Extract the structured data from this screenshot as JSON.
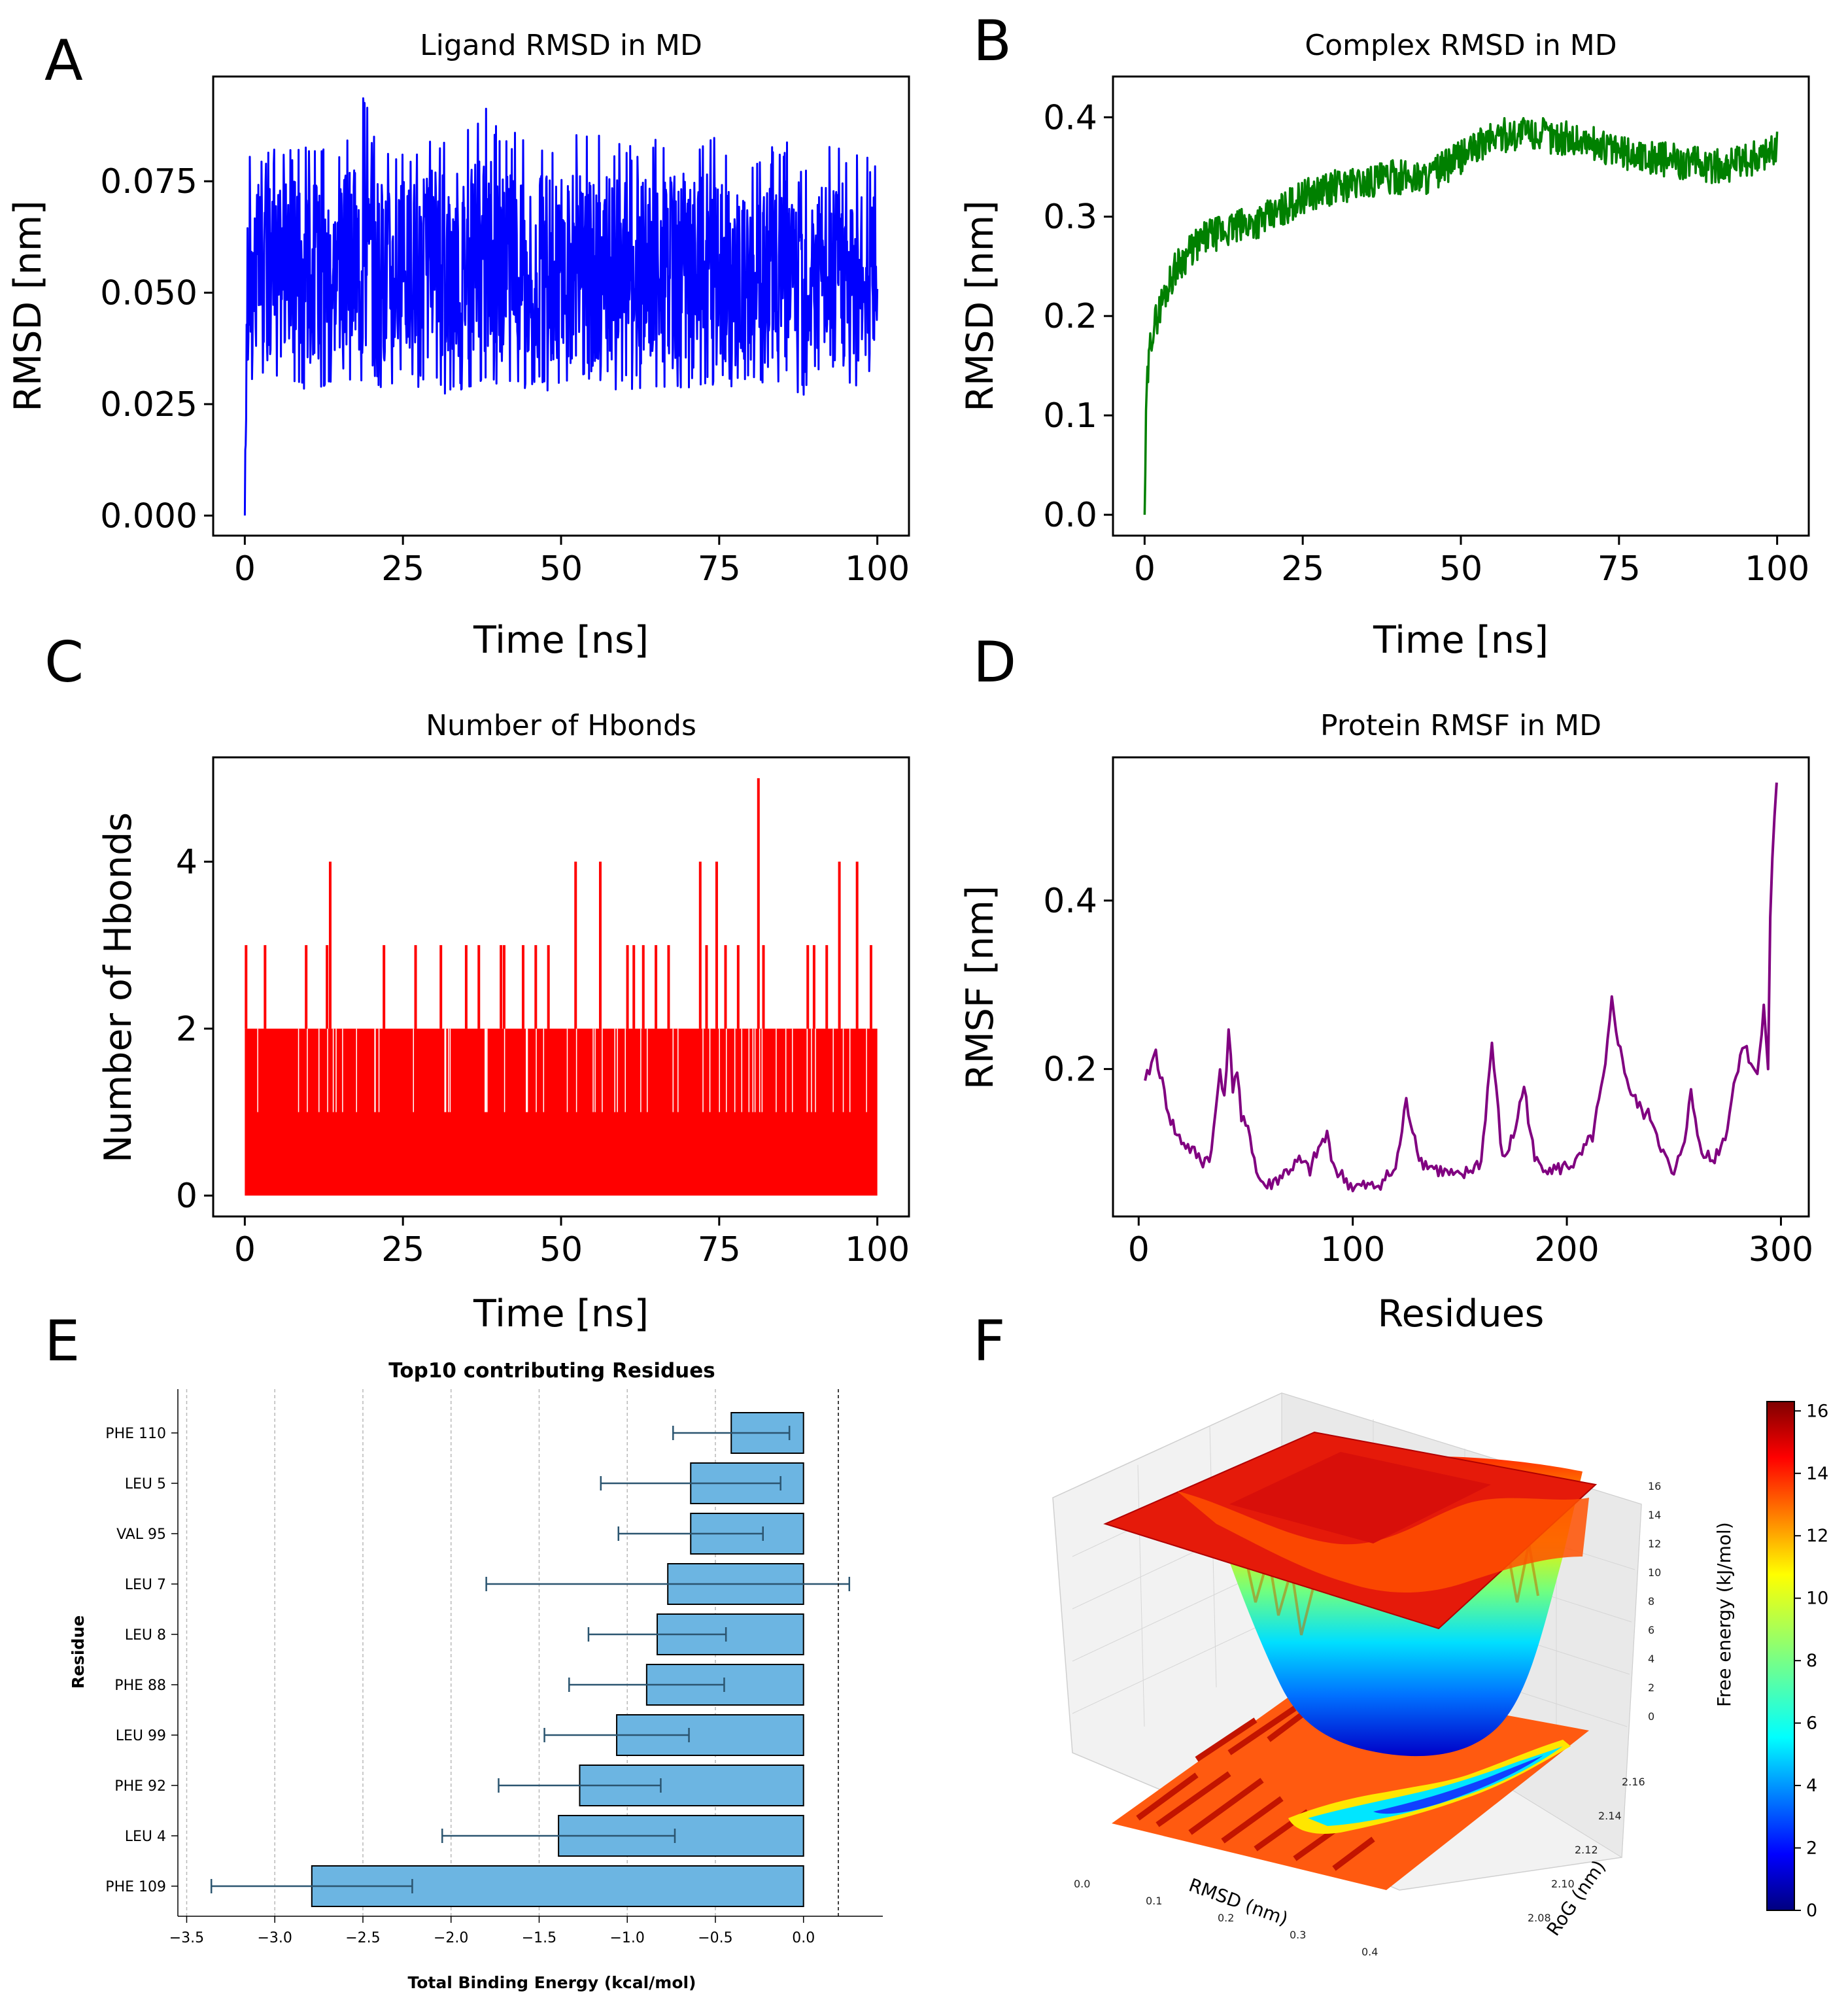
{
  "panels": {
    "A": "A",
    "B": "B",
    "C": "C",
    "D": "D",
    "E": "E",
    "F": "F"
  },
  "chart_data": [
    {
      "id": "A",
      "type": "line",
      "title": "Ligand RMSD in MD",
      "xlabel": "Time [ns]",
      "ylabel": "RMSD [nm]",
      "xlim": [
        -5,
        105
      ],
      "ylim": [
        -0.0045,
        0.0985
      ],
      "xticks": [
        0,
        25,
        50,
        75,
        100
      ],
      "xtick_labels": [
        "0",
        "25",
        "50",
        "75",
        "100"
      ],
      "yticks": [
        0,
        0.025,
        0.05,
        0.075
      ],
      "ytick_labels": [
        "0.000",
        "0.025",
        "0.050",
        "0.075"
      ],
      "color": "#0000ff",
      "series": [
        {
          "name": "Ligand RMSD",
          "x": [
            0,
            0.3,
            1,
            5,
            10,
            15,
            19,
            20,
            25,
            30,
            35,
            38,
            40,
            45,
            50,
            55,
            60,
            65,
            70,
            75,
            80,
            85,
            90,
            95,
            100
          ],
          "mean": [
            0,
            0.045,
            0.055,
            0.055,
            0.055,
            0.056,
            0.058,
            0.055,
            0.055,
            0.056,
            0.057,
            0.058,
            0.056,
            0.055,
            0.056,
            0.055,
            0.055,
            0.054,
            0.055,
            0.055,
            0.054,
            0.054,
            0.055,
            0.054,
            0.055
          ],
          "min_env": [
            0,
            0.03,
            0.03,
            0.028,
            0.027,
            0.029,
            0.03,
            0.028,
            0.029,
            0.027,
            0.028,
            0.03,
            0.029,
            0.028,
            0.027,
            0.029,
            0.028,
            0.028,
            0.027,
            0.028,
            0.028,
            0.026,
            0.027,
            0.028,
            0.03
          ],
          "max_env": [
            0,
            0.084,
            0.084,
            0.082,
            0.083,
            0.082,
            0.095,
            0.086,
            0.082,
            0.085,
            0.086,
            0.094,
            0.087,
            0.085,
            0.084,
            0.087,
            0.083,
            0.085,
            0.086,
            0.085,
            0.082,
            0.083,
            0.09,
            0.082,
            0.08
          ]
        }
      ]
    },
    {
      "id": "B",
      "type": "line",
      "title": "Complex RMSD in MD",
      "xlabel": "Time [ns]",
      "ylabel": "RMSD [nm]",
      "xlim": [
        -5,
        105
      ],
      "ylim": [
        -0.021,
        0.441
      ],
      "xticks": [
        0,
        25,
        50,
        75,
        100
      ],
      "xtick_labels": [
        "0",
        "25",
        "50",
        "75",
        "100"
      ],
      "yticks": [
        0,
        0.1,
        0.2,
        0.3,
        0.4
      ],
      "ytick_labels": [
        "0.0",
        "0.1",
        "0.2",
        "0.3",
        "0.4"
      ],
      "color": "#008000",
      "series": [
        {
          "name": "Complex RMSD",
          "x": [
            0,
            0.3,
            1,
            2,
            3,
            5,
            8,
            10,
            15,
            20,
            25,
            30,
            35,
            40,
            45,
            50,
            55,
            60,
            65,
            70,
            75,
            80,
            85,
            90,
            95,
            100
          ],
          "y": [
            0,
            0.12,
            0.18,
            0.2,
            0.22,
            0.25,
            0.27,
            0.28,
            0.29,
            0.3,
            0.32,
            0.33,
            0.335,
            0.34,
            0.34,
            0.36,
            0.38,
            0.385,
            0.38,
            0.375,
            0.365,
            0.36,
            0.355,
            0.35,
            0.355,
            0.37
          ]
        }
      ]
    },
    {
      "id": "C",
      "type": "line",
      "title": "Number of Hbonds",
      "xlabel": "Time [ns]",
      "ylabel": "Number of Hbonds",
      "xlim": [
        -5,
        105
      ],
      "ylim": [
        -0.25,
        5.25
      ],
      "xticks": [
        0,
        25,
        50,
        75,
        100
      ],
      "xtick_labels": [
        "0",
        "25",
        "50",
        "75",
        "100"
      ],
      "yticks": [
        0,
        2,
        4
      ],
      "ytick_labels": [
        "0",
        "2",
        "4"
      ],
      "color": "#ff0000",
      "base_fluctuation": [
        0,
        2
      ],
      "spikes": [
        {
          "x": 0.2,
          "y": 3
        },
        {
          "x": 3.2,
          "y": 3
        },
        {
          "x": 9.7,
          "y": 3
        },
        {
          "x": 13.5,
          "y": 4
        },
        {
          "x": 13,
          "y": 3
        },
        {
          "x": 22,
          "y": 3
        },
        {
          "x": 27,
          "y": 3
        },
        {
          "x": 31,
          "y": 3
        },
        {
          "x": 35,
          "y": 3
        },
        {
          "x": 37,
          "y": 3
        },
        {
          "x": 40.5,
          "y": 3
        },
        {
          "x": 41,
          "y": 3
        },
        {
          "x": 44,
          "y": 3
        },
        {
          "x": 46,
          "y": 3
        },
        {
          "x": 48,
          "y": 3
        },
        {
          "x": 52.3,
          "y": 4
        },
        {
          "x": 56.2,
          "y": 4
        },
        {
          "x": 60.5,
          "y": 3
        },
        {
          "x": 61.5,
          "y": 3
        },
        {
          "x": 63,
          "y": 3
        },
        {
          "x": 65,
          "y": 3
        },
        {
          "x": 67,
          "y": 3
        },
        {
          "x": 72,
          "y": 4
        },
        {
          "x": 73,
          "y": 3
        },
        {
          "x": 74.6,
          "y": 4
        },
        {
          "x": 76,
          "y": 3
        },
        {
          "x": 78,
          "y": 3
        },
        {
          "x": 81.2,
          "y": 5
        },
        {
          "x": 82,
          "y": 3
        },
        {
          "x": 89,
          "y": 3
        },
        {
          "x": 90,
          "y": 3
        },
        {
          "x": 92,
          "y": 3
        },
        {
          "x": 94,
          "y": 4
        },
        {
          "x": 96.8,
          "y": 4
        },
        {
          "x": 99,
          "y": 3
        }
      ]
    },
    {
      "id": "D",
      "type": "line",
      "title": "Protein RMSF in MD",
      "xlabel": "Residues",
      "ylabel": "RMSF [nm]",
      "xlim": [
        -12,
        313
      ],
      "ylim": [
        0.025,
        0.57
      ],
      "xticks": [
        0,
        100,
        200,
        300
      ],
      "xtick_labels": [
        "0",
        "100",
        "200",
        "300"
      ],
      "yticks": [
        0.2,
        0.4
      ],
      "ytick_labels": [
        "0.2",
        "0.4"
      ],
      "color": "#800080",
      "series": [
        {
          "name": "RMSF",
          "x": [
            3,
            5,
            8,
            12,
            15,
            18,
            22,
            26,
            30,
            34,
            36,
            38,
            40,
            42,
            44,
            46,
            48,
            52,
            56,
            60,
            65,
            70,
            75,
            80,
            85,
            88,
            92,
            100,
            110,
            120,
            125,
            128,
            132,
            140,
            150,
            160,
            165,
            170,
            175,
            180,
            185,
            195,
            205,
            212,
            218,
            221,
            225,
            230,
            235,
            240,
            245,
            250,
            255,
            258,
            262,
            268,
            274,
            278,
            282,
            286,
            289,
            292,
            294,
            295,
            296,
            297,
            298
          ],
          "y": [
            0.18,
            0.2,
            0.22,
            0.17,
            0.14,
            0.12,
            0.11,
            0.1,
            0.09,
            0.1,
            0.15,
            0.2,
            0.17,
            0.24,
            0.18,
            0.2,
            0.14,
            0.12,
            0.07,
            0.06,
            0.07,
            0.08,
            0.09,
            0.08,
            0.11,
            0.12,
            0.08,
            0.06,
            0.06,
            0.08,
            0.16,
            0.13,
            0.09,
            0.08,
            0.07,
            0.09,
            0.23,
            0.09,
            0.12,
            0.18,
            0.09,
            0.08,
            0.09,
            0.12,
            0.2,
            0.28,
            0.22,
            0.17,
            0.15,
            0.14,
            0.1,
            0.07,
            0.12,
            0.17,
            0.11,
            0.09,
            0.12,
            0.18,
            0.23,
            0.21,
            0.19,
            0.28,
            0.2,
            0.38,
            0.45,
            0.5,
            0.54
          ]
        }
      ]
    },
    {
      "id": "E",
      "type": "bar",
      "orientation": "horizontal",
      "title": "Top10 contributing Residues",
      "xlabel": "Total Binding Energy (kcal/mol)",
      "ylabel": "Residue",
      "xlim": [
        -3.55,
        0.45
      ],
      "xticks": [
        -3.5,
        -3.0,
        -2.5,
        -2.0,
        -1.5,
        -1.0,
        -0.5,
        0.0
      ],
      "xtick_labels": [
        "−3.5",
        "−3.0",
        "−2.5",
        "−2.0",
        "−1.5",
        "−1.0",
        "−0.5",
        "0.0"
      ],
      "color": "#6cb5e2",
      "error_color": "#2b5570",
      "categories": [
        "PHE 110",
        "LEU 5",
        "VAL 95",
        "LEU 7",
        "LEU 8",
        "PHE 88",
        "LEU 99",
        "PHE 92",
        "LEU 4",
        "PHE 109"
      ],
      "values": [
        -0.41,
        -0.64,
        -0.64,
        -0.77,
        -0.83,
        -0.89,
        -1.06,
        -1.27,
        -1.39,
        -2.79
      ],
      "errors": [
        0.33,
        0.51,
        0.41,
        1.03,
        0.39,
        0.44,
        0.41,
        0.46,
        0.66,
        0.57
      ]
    },
    {
      "id": "F",
      "type": "surface3d",
      "xlabel": "RMSD (nm)",
      "ylabel": "RoG (nm)",
      "zlabel": "Free energy (kJ/mol)",
      "x_ticks": [
        "0.0",
        "0.1",
        "0.2",
        "0.3",
        "0.4"
      ],
      "y_ticks": [
        "2.08",
        "2.10",
        "2.12",
        "2.14",
        "2.16"
      ],
      "z_ticks": [
        "0",
        "2",
        "4",
        "6",
        "8",
        "10",
        "12",
        "14",
        "16"
      ],
      "colorbar": {
        "min": 0,
        "max": 16.3,
        "ticks": [
          "0",
          "2",
          "4",
          "6",
          "8",
          "10",
          "12",
          "14",
          "16"
        ],
        "colormap": "jet"
      }
    }
  ]
}
